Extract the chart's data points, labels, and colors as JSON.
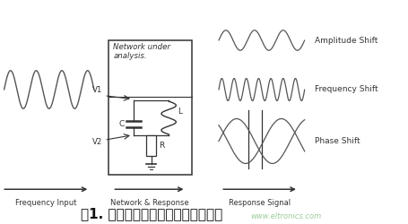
{
  "title": "图1. 具有复数阻抗特性的传感器模型",
  "watermark": "www.eltronics.com",
  "watermark_color": "#99cc99",
  "bg_color": "#ffffff",
  "label_freq_input": "Frequency Input",
  "label_network": "Network & Response",
  "label_response": "Response Signal",
  "label_network_box": "Network under\nanalysis.",
  "label_amplitude": "Amplitude Shift",
  "label_frequency": "Frequency Shift",
  "label_phase": "Phase Shift",
  "label_C": "C",
  "label_L": "L",
  "label_R": "R",
  "label_V1": "V1",
  "label_V2": "V2",
  "line_color": "#555555",
  "text_color": "#333333"
}
